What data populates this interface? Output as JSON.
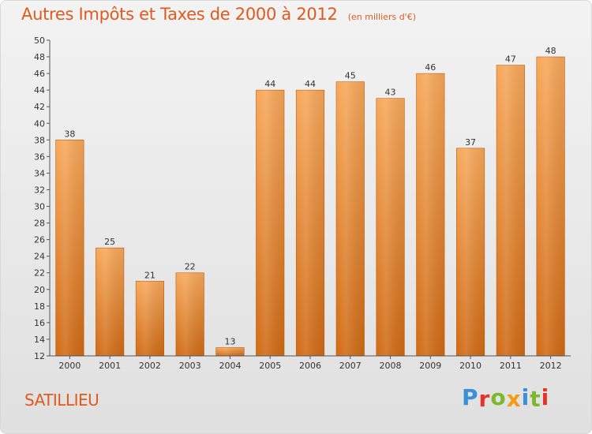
{
  "header": {
    "title": "Autres Impôts et Taxes de 2000 à 2012",
    "subtitle": "(en milliers d'€)"
  },
  "footer": {
    "city": "SATILLIEU",
    "logo_letters": [
      "P",
      "r",
      "o",
      "x",
      "i",
      "t",
      "i"
    ],
    "logo_colors": [
      "#3a8fd8",
      "#e6332a",
      "#7cb82f",
      "#f39c12",
      "#3a8fd8",
      "#7cb82f",
      "#e6332a"
    ]
  },
  "colors": {
    "title": "#e05a1e",
    "bar_top": "#f7a85a",
    "bar_bottom": "#d06a14",
    "bar_edge": "#c25f10",
    "axis": "#555555",
    "grid": "#cfcfcf"
  },
  "chart_data": {
    "type": "bar",
    "categories": [
      "2000",
      "2001",
      "2002",
      "2003",
      "2004",
      "2005",
      "2006",
      "2007",
      "2008",
      "2009",
      "2010",
      "2011",
      "2012"
    ],
    "values": [
      38,
      25,
      21,
      22,
      13,
      44,
      44,
      45,
      43,
      46,
      37,
      47,
      48
    ],
    "data_labels": [
      "38",
      "25",
      "21",
      "22",
      "13",
      "44",
      "44",
      "45",
      "43",
      "46",
      "37",
      "47",
      "48"
    ],
    "title": "Autres Impôts et Taxes de 2000 à 2012",
    "subtitle": "(en milliers d'€)",
    "ylim": [
      12,
      50
    ],
    "yticks": [
      "12",
      "14",
      "16",
      "18",
      "20",
      "22",
      "24",
      "26",
      "28",
      "30",
      "32",
      "34",
      "36",
      "38",
      "40",
      "42",
      "44",
      "46",
      "48",
      "50"
    ],
    "grid": false
  }
}
